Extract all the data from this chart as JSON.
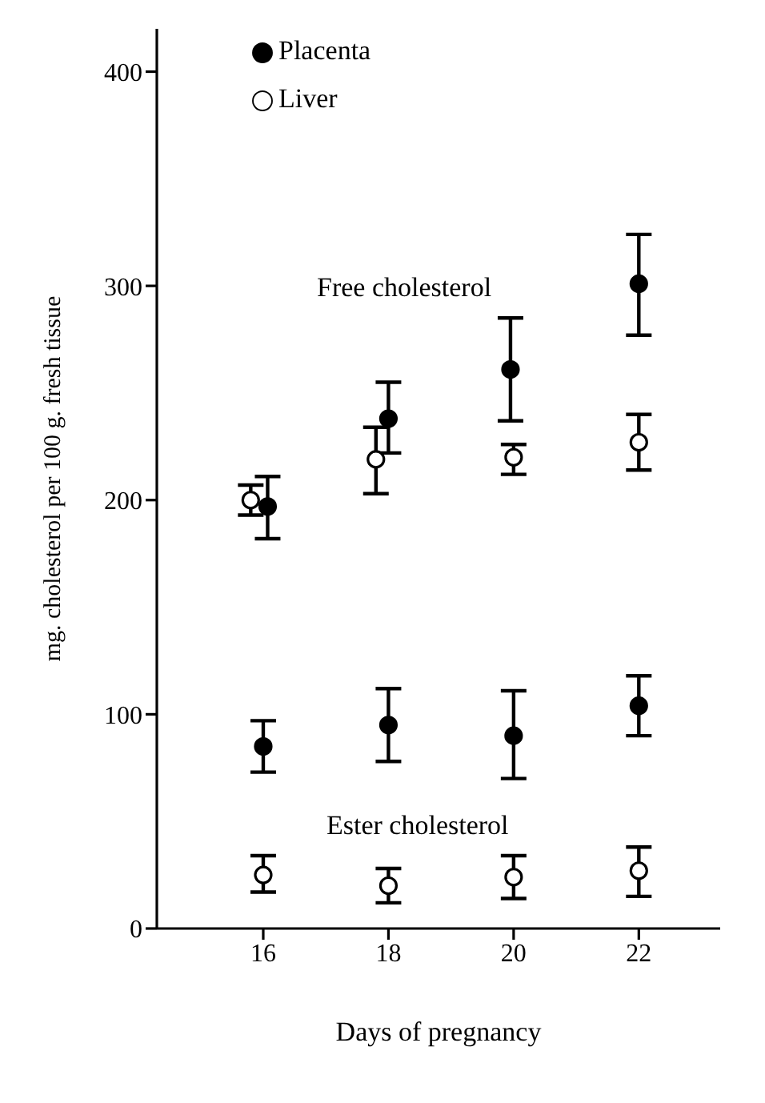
{
  "chart_data": {
    "type": "scatter",
    "xlabel": "Days of pregnancy",
    "ylabel": "mg. cholesterol per 100 g. fresh tissue",
    "xlim": [
      14.3,
      23.3
    ],
    "xticks": [
      16,
      18,
      20,
      22
    ],
    "ylim": [
      0,
      420
    ],
    "yticks": [
      0,
      100,
      200,
      300,
      400
    ],
    "grid": false,
    "legend": "top left",
    "marker": "circle",
    "series": [
      {
        "name": "Placenta",
        "color": "#000000",
        "x": [
          16.07,
          18,
          19.95,
          22
        ],
        "values": [
          197,
          238,
          261,
          301
        ],
        "errors": [
          [
            182,
            211
          ],
          [
            222,
            255
          ],
          [
            237,
            285
          ],
          [
            277,
            324
          ]
        ]
      },
      {
        "name": "Liver",
        "color": "#ffffff",
        "x": [
          15.8,
          17.8,
          20,
          22
        ],
        "values": [
          200,
          219,
          220,
          227
        ],
        "errors": [
          [
            193,
            207
          ],
          [
            203,
            234
          ],
          [
            212,
            226
          ],
          [
            214,
            240
          ]
        ]
      },
      {
        "color": "#000000",
        "x": [
          16,
          18,
          20,
          22
        ],
        "values": [
          85,
          95,
          90,
          104
        ],
        "errors": [
          [
            73,
            97
          ],
          [
            78,
            112
          ],
          [
            70,
            111
          ],
          [
            90,
            118
          ]
        ]
      },
      {
        "color": "#ffffff",
        "x": [
          16,
          18,
          20,
          22
        ],
        "values": [
          25,
          20,
          24,
          27
        ],
        "errors": [
          [
            17,
            34
          ],
          [
            12,
            28
          ],
          [
            14,
            34
          ],
          [
            15,
            38
          ]
        ]
      }
    ],
    "annotations": [
      "Free cholesterol",
      "Ester cholesterol"
    ]
  }
}
